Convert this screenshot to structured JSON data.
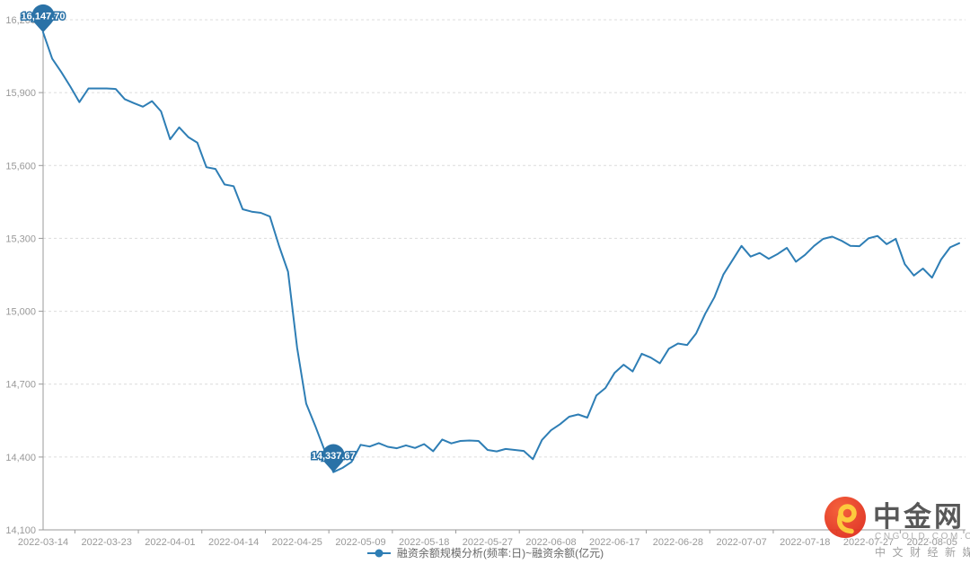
{
  "chart_data": {
    "type": "line",
    "name": "融资余额规模分析(频率:日)~融资余额(亿元)",
    "line_color": "#2e7eb5",
    "pin_color": "#2a72a7",
    "grid": "horizontal-dashed",
    "legend_position": "bottom",
    "ylim": [
      14100,
      16200
    ],
    "y_ticks": [
      14100,
      14400,
      14700,
      15000,
      15300,
      15600,
      15900,
      16200
    ],
    "y_tick_labels": [
      "14,100",
      "14,400",
      "14,700",
      "15,000",
      "15,300",
      "15,600",
      "15,900",
      "16,200"
    ],
    "x_tick_labels": [
      "2022-03-14",
      "2022-03-23",
      "2022-04-01",
      "2022-04-14",
      "2022-04-25",
      "2022-05-09",
      "2022-05-18",
      "2022-05-27",
      "2022-06-08",
      "2022-06-17",
      "2022-06-28",
      "2022-07-07",
      "2022-07-18",
      "2022-07-27",
      "2022-08-05"
    ],
    "max_point": {
      "date": "2022-03-14",
      "value": 16147.7,
      "label": "16,147.70"
    },
    "min_point": {
      "date": "2022-04-29",
      "value": 14337.67,
      "label": "14,337.67"
    },
    "dates": [
      "2022-03-14",
      "2022-03-15",
      "2022-03-16",
      "2022-03-17",
      "2022-03-18",
      "2022-03-21",
      "2022-03-22",
      "2022-03-23",
      "2022-03-24",
      "2022-03-25",
      "2022-03-28",
      "2022-03-29",
      "2022-03-30",
      "2022-03-31",
      "2022-04-01",
      "2022-04-06",
      "2022-04-07",
      "2022-04-08",
      "2022-04-11",
      "2022-04-12",
      "2022-04-13",
      "2022-04-14",
      "2022-04-15",
      "2022-04-18",
      "2022-04-19",
      "2022-04-20",
      "2022-04-21",
      "2022-04-22",
      "2022-04-25",
      "2022-04-26",
      "2022-04-27",
      "2022-04-28",
      "2022-04-29",
      "2022-05-05",
      "2022-05-06",
      "2022-05-09",
      "2022-05-10",
      "2022-05-11",
      "2022-05-12",
      "2022-05-13",
      "2022-05-16",
      "2022-05-17",
      "2022-05-18",
      "2022-05-19",
      "2022-05-20",
      "2022-05-23",
      "2022-05-24",
      "2022-05-25",
      "2022-05-26",
      "2022-05-27",
      "2022-05-30",
      "2022-05-31",
      "2022-06-01",
      "2022-06-02",
      "2022-06-06",
      "2022-06-07",
      "2022-06-08",
      "2022-06-09",
      "2022-06-10",
      "2022-06-13",
      "2022-06-14",
      "2022-06-15",
      "2022-06-16",
      "2022-06-17",
      "2022-06-20",
      "2022-06-21",
      "2022-06-22",
      "2022-06-23",
      "2022-06-24",
      "2022-06-27",
      "2022-06-28",
      "2022-06-29",
      "2022-06-30",
      "2022-07-01",
      "2022-07-04",
      "2022-07-05",
      "2022-07-06",
      "2022-07-07",
      "2022-07-08",
      "2022-07-11",
      "2022-07-12",
      "2022-07-13",
      "2022-07-14",
      "2022-07-15",
      "2022-07-18",
      "2022-07-19",
      "2022-07-20",
      "2022-07-21",
      "2022-07-22",
      "2022-07-25",
      "2022-07-26",
      "2022-07-27",
      "2022-07-28",
      "2022-07-29",
      "2022-08-01",
      "2022-08-02",
      "2022-08-03",
      "2022-08-04",
      "2022-08-05",
      "2022-08-08",
      "2022-08-09",
      "2022-08-10"
    ],
    "values": [
      16147.7,
      16040,
      15985,
      15925,
      15861,
      15917,
      15917,
      15917,
      15915,
      15873,
      15857,
      15842,
      15865,
      15823,
      15708,
      15757,
      15717,
      15694,
      15593,
      15586,
      15522,
      15515,
      15420,
      15410,
      15405,
      15390,
      15270,
      15163,
      14850,
      14620,
      14528,
      14430,
      14337.67,
      14355,
      14380,
      14450,
      14443,
      14457,
      14442,
      14436,
      14448,
      14437,
      14453,
      14424,
      14472,
      14456,
      14466,
      14468,
      14466,
      14429,
      14423,
      14433,
      14429,
      14425,
      14391,
      14470,
      14510,
      14535,
      14566,
      14575,
      14562,
      14653,
      14684,
      14746,
      14780,
      14752,
      14825,
      14809,
      14786,
      14846,
      14867,
      14861,
      14909,
      14990,
      15057,
      15151,
      15210,
      15269,
      15225,
      15240,
      15216,
      15236,
      15261,
      15204,
      15232,
      15269,
      15298,
      15307,
      15291,
      15269,
      15268,
      15300,
      15310,
      15276,
      15298,
      15194,
      15147,
      15176,
      15138,
      15213,
      15263,
      15280
    ]
  },
  "legend": {
    "label": "融资余额规模分析(频率:日)~融资余额(亿元)"
  },
  "watermark": {
    "brand": "中金网",
    "domain": "CNGOLD.COM.CN",
    "tagline": "中文财经新媒体",
    "logo_red": "#e2301c",
    "logo_gold": "#fdc62f"
  }
}
